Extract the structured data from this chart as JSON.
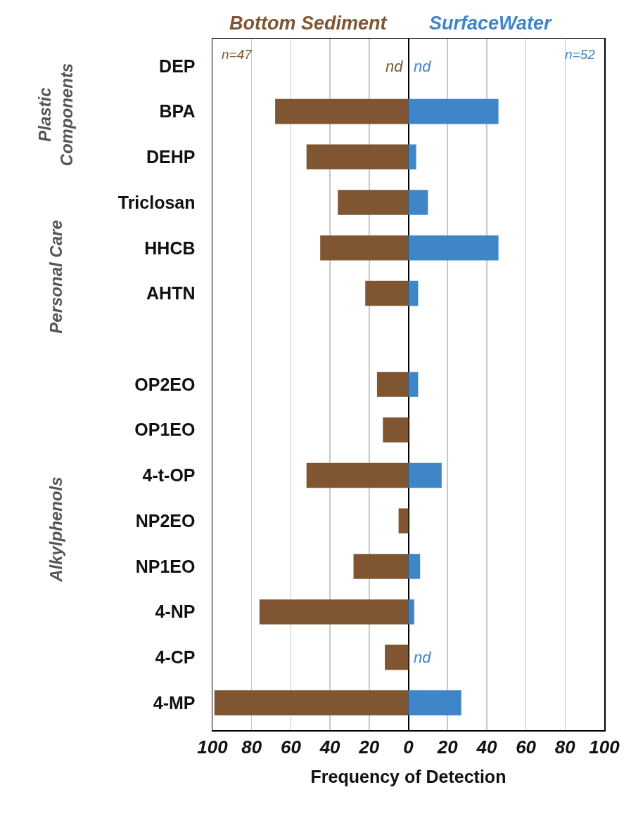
{
  "chart_data": {
    "type": "bar",
    "orientation": "horizontal",
    "xlabel": "Frequency of Detection",
    "categories": [
      "DEP",
      "BPA",
      "DEHP",
      "Triclosan",
      "HHCB",
      "AHTN",
      null,
      "OP2EO",
      "OP1EO",
      "4-t-OP",
      "NP2EO",
      "NP1EO",
      "4-NP",
      "4-CP",
      "4-MP"
    ],
    "series": [
      {
        "name": "Bottom Sediment",
        "color": "#7f5631",
        "values": [
          null,
          -68,
          -52,
          -36,
          -45,
          -22,
          null,
          -16,
          -13,
          -52,
          -5,
          -28,
          -76,
          -12,
          -99
        ]
      },
      {
        "name": "SurfaceWater",
        "color": "#3f86c8",
        "values": [
          null,
          46,
          4,
          10,
          46,
          5,
          null,
          5,
          null,
          17,
          null,
          6,
          3,
          null,
          27
        ]
      }
    ],
    "xlim": [
      -100,
      100
    ],
    "xticks": [
      {
        "value": -100,
        "label": "100"
      },
      {
        "value": -80,
        "label": "80"
      },
      {
        "value": -60,
        "label": "60"
      },
      {
        "value": -40,
        "label": "40"
      },
      {
        "value": -20,
        "label": "20"
      },
      0,
      20,
      40,
      60,
      80,
      100
    ],
    "grid": "x",
    "stacked": true,
    "legend": "top",
    "annotations": [
      "n=47",
      "n=52",
      "Plastic Components",
      "Personal Care",
      "Alkylphenols",
      "nd",
      "nd",
      "nd"
    ]
  }
}
